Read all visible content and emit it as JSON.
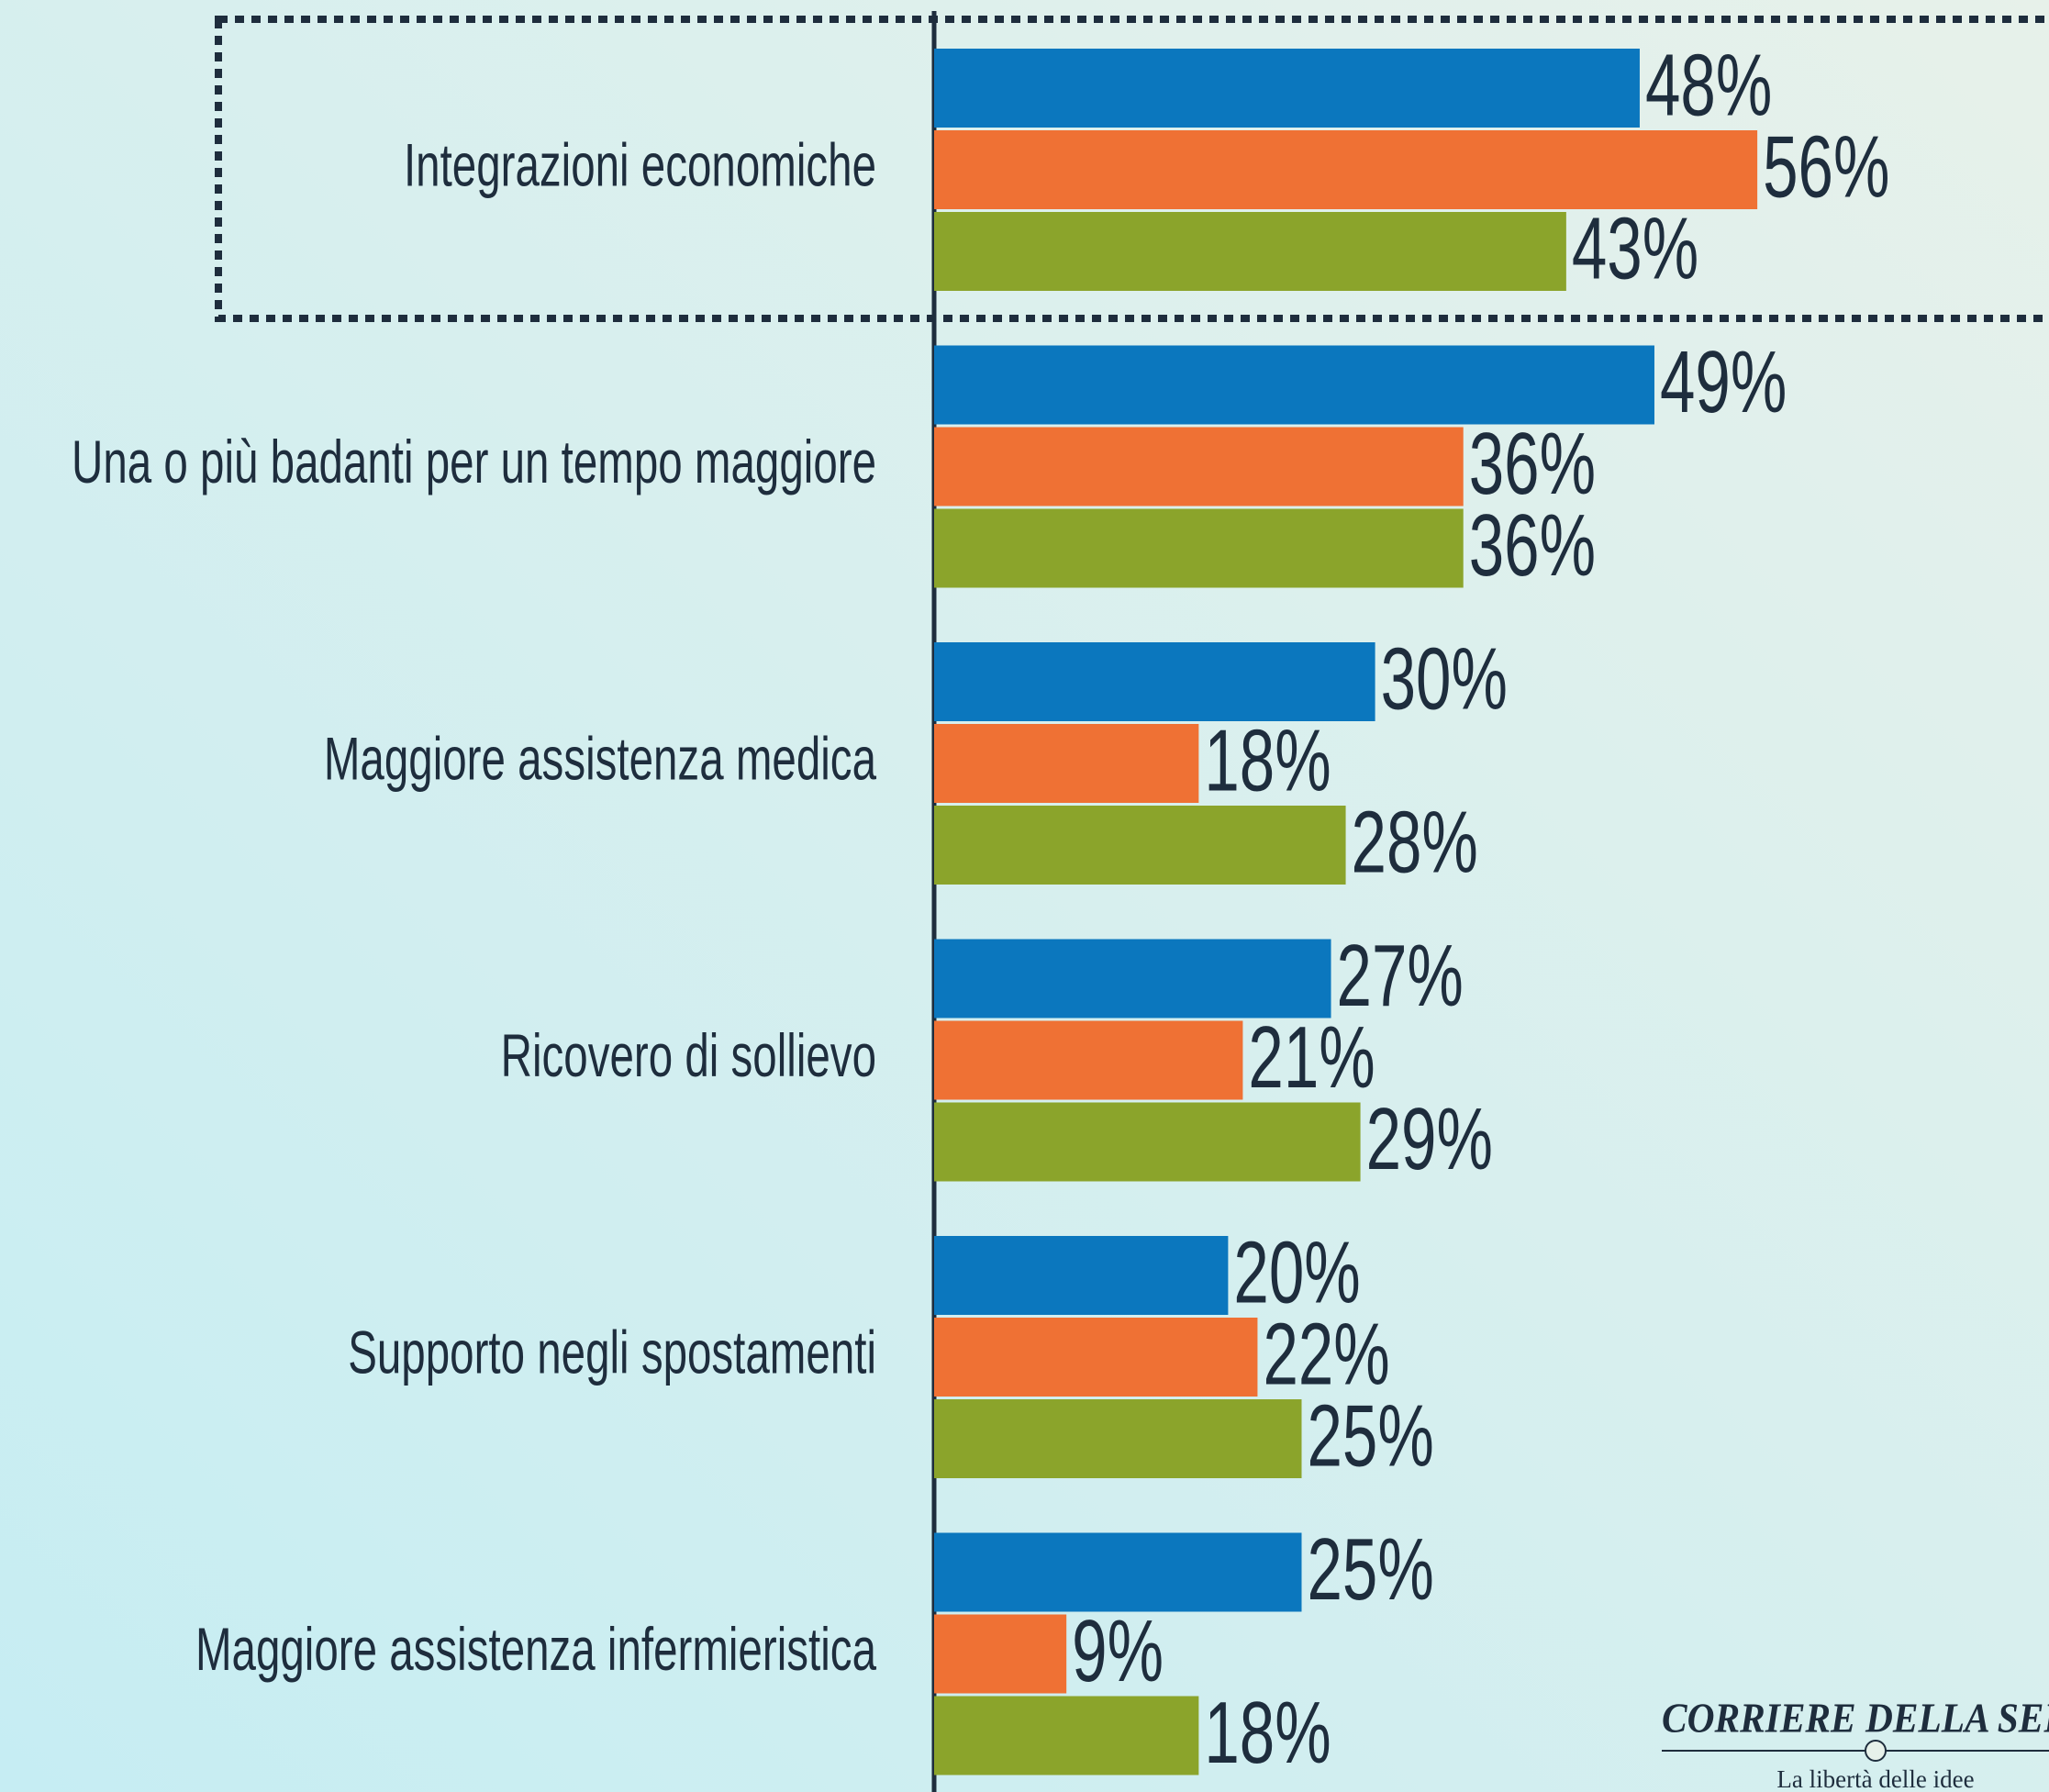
{
  "chart_data": {
    "type": "bar",
    "orientation": "horizontal",
    "categories": [
      "Integrazioni economiche",
      "Una o più badanti per un tempo maggiore",
      "Maggiore assistenza medica",
      "Ricovero di sollievo",
      "Supporto negli spostamenti",
      "Maggiore assistenza infermieristica"
    ],
    "series": [
      {
        "color": "#0b77be",
        "values": [
          48,
          49,
          30,
          27,
          20,
          25
        ],
        "value_labels": [
          "48%",
          "49%",
          "30%",
          "27%",
          "20%",
          "25%"
        ]
      },
      {
        "color": "#ef7134",
        "values": [
          56,
          36,
          18,
          21,
          22,
          9
        ],
        "value_labels": [
          "56%",
          "36%",
          "18%",
          "21%",
          "22%",
          "9%"
        ]
      },
      {
        "color": "#8ba42b",
        "values": [
          43,
          36,
          28,
          29,
          25,
          18
        ],
        "value_labels": [
          "43%",
          "36%",
          "28%",
          "29%",
          "25%",
          "18%"
        ]
      }
    ]
  },
  "branding": {
    "logo": "CORRIERE DELLA SERA",
    "tagline": "La libertà delle idee"
  }
}
